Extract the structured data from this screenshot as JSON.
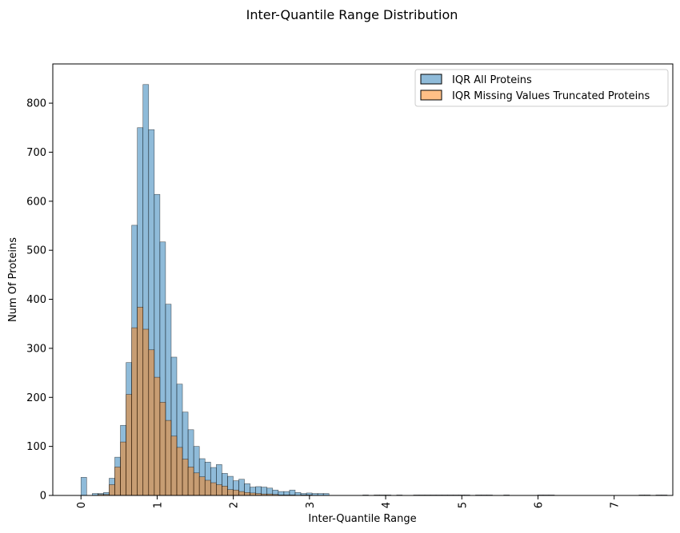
{
  "chart_data": {
    "type": "bar",
    "title": "Inter-Quantile Range Distribution",
    "xlabel": "Inter-Quantile Range",
    "ylabel": "Num Of Proteins",
    "xlim": [
      -0.37,
      7.77
    ],
    "ylim": [
      0,
      880
    ],
    "xticks": [
      0,
      1,
      2,
      3,
      4,
      5,
      6,
      7
    ],
    "yticks": [
      0,
      100,
      200,
      300,
      400,
      500,
      600,
      700,
      800
    ],
    "xtick_rotation": 90,
    "grid": false,
    "legend_position": "top-right",
    "bin_width": 0.074,
    "bin_start": 0.0,
    "series": [
      {
        "name": "IQR All Proteins",
        "color": "#1f77b4",
        "values": [
          37,
          0,
          4,
          4,
          6,
          35,
          78,
          143,
          271,
          551,
          750,
          838,
          746,
          614,
          517,
          390,
          282,
          227,
          170,
          134,
          100,
          75,
          68,
          57,
          63,
          45,
          39,
          30,
          33,
          24,
          17,
          18,
          17,
          15,
          11,
          8,
          8,
          11,
          6,
          4,
          5,
          4,
          4,
          4,
          0,
          0,
          0,
          0,
          0,
          0,
          1,
          0,
          1,
          1,
          1,
          0,
          1,
          0,
          0,
          1,
          1,
          1,
          1,
          1,
          1,
          1,
          1,
          1,
          1,
          0,
          1,
          1,
          1,
          0,
          0,
          1,
          0,
          0,
          0,
          0,
          0,
          1,
          1,
          1,
          0,
          0,
          0,
          0,
          0,
          0,
          0,
          0,
          0,
          0,
          0,
          0,
          0,
          0,
          0,
          1,
          1,
          0,
          1,
          1
        ]
      },
      {
        "name": "IQR Missing Values Truncated Proteins",
        "color": "#ff7f0e",
        "values": [
          0,
          0,
          0,
          2,
          2,
          22,
          58,
          109,
          206,
          342,
          384,
          339,
          297,
          241,
          190,
          153,
          121,
          98,
          74,
          58,
          46,
          38,
          31,
          26,
          22,
          19,
          12,
          11,
          8,
          6,
          5,
          4,
          3,
          3,
          2,
          1,
          1,
          1,
          0,
          1,
          1,
          0,
          0,
          0,
          0,
          0,
          0,
          0,
          0,
          0,
          0,
          0,
          0,
          0,
          0,
          0,
          0,
          0,
          0,
          0,
          0,
          0,
          0,
          0,
          0,
          0,
          0,
          0,
          0,
          0,
          0,
          0,
          0,
          0,
          0,
          0,
          0,
          0,
          0,
          0,
          0,
          0,
          0,
          0,
          0,
          0,
          0,
          0,
          0,
          0,
          0,
          0,
          0,
          0,
          0,
          0,
          0,
          0,
          0,
          0,
          0,
          0,
          0,
          0
        ]
      }
    ]
  }
}
